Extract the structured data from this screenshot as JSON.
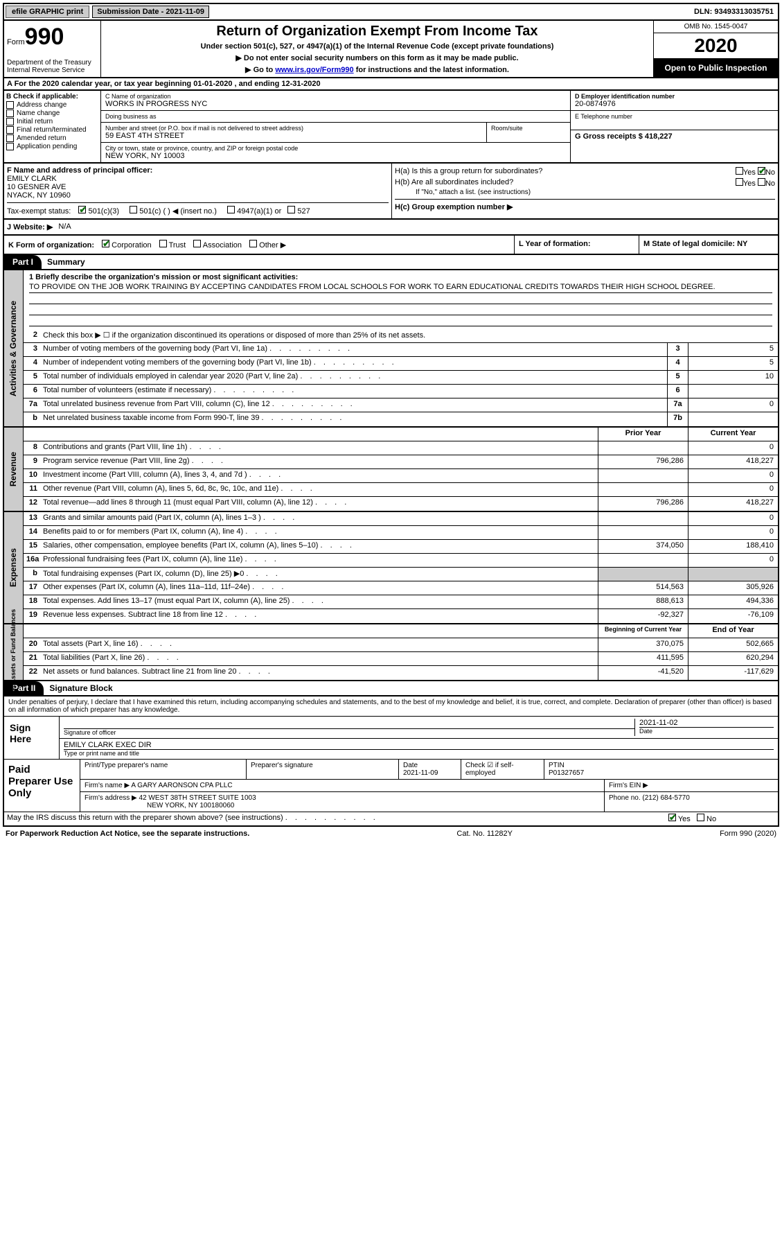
{
  "topbar": {
    "efile": "efile GRAPHIC print",
    "submission_label": "Submission Date - 2021-11-09",
    "dln": "DLN: 93493313035751"
  },
  "header": {
    "form_word": "Form",
    "form_num": "990",
    "dept": "Department of the Treasury\nInternal Revenue Service",
    "title": "Return of Organization Exempt From Income Tax",
    "subtitle": "Under section 501(c), 527, or 4947(a)(1) of the Internal Revenue Code (except private foundations)",
    "instr1": "▶ Do not enter social security numbers on this form as it may be made public.",
    "instr2_pre": "▶ Go to ",
    "instr2_link": "www.irs.gov/Form990",
    "instr2_post": " for instructions and the latest information.",
    "omb": "OMB No. 1545-0047",
    "year": "2020",
    "public": "Open to Public Inspection"
  },
  "row_a": "A For the 2020 calendar year, or tax year beginning 01-01-2020   , and ending 12-31-2020",
  "col_b": {
    "header": "B Check if applicable:",
    "items": [
      "Address change",
      "Name change",
      "Initial return",
      "Final return/terminated",
      "Amended return",
      "Application pending"
    ]
  },
  "col_c": {
    "name_label": "C Name of organization",
    "name": "WORKS IN PROGRESS NYC",
    "dba_label": "Doing business as",
    "dba": "",
    "addr_label": "Number and street (or P.O. box if mail is not delivered to street address)",
    "room_label": "Room/suite",
    "addr": "59 EAST 4TH STREET",
    "city_label": "City or town, state or province, country, and ZIP or foreign postal code",
    "city": "NEW YORK, NY  10003"
  },
  "col_d": {
    "label": "D Employer identification number",
    "val": "20-0874976"
  },
  "col_e": {
    "label": "E Telephone number",
    "val": ""
  },
  "col_g": {
    "label": "G Gross receipts $ 418,227"
  },
  "col_f": {
    "label": "F  Name and address of principal officer:",
    "name": "EMILY CLARK",
    "addr1": "10 GESNER AVE",
    "addr2": "NYACK, NY  10960"
  },
  "col_h": {
    "a_label": "H(a)  Is this a group return for subordinates?",
    "b_label": "H(b)  Are all subordinates included?",
    "b_note": "If \"No,\" attach a list. (see instructions)",
    "c_label": "H(c)  Group exemption number ▶",
    "yes": "Yes",
    "no": "No"
  },
  "row_i": {
    "label": "Tax-exempt status:",
    "opts": [
      "501(c)(3)",
      "501(c) (  ) ◀ (insert no.)",
      "4947(a)(1) or",
      "527"
    ]
  },
  "row_j": {
    "label": "J   Website: ▶",
    "val": "N/A"
  },
  "row_k": {
    "label": "K Form of organization:",
    "opts": [
      "Corporation",
      "Trust",
      "Association",
      "Other ▶"
    ]
  },
  "row_l": {
    "label": "L Year of formation:",
    "val": ""
  },
  "row_m": {
    "label": "M State of legal domicile: NY"
  },
  "part1": {
    "hdr": "Part I",
    "title": "Summary"
  },
  "summary": {
    "l1_label": "1  Briefly describe the organization's mission or most significant activities:",
    "l1_text": "TO PROVIDE ON THE JOB WORK TRAINING BY ACCEPTING CANDIDATES FROM LOCAL SCHOOLS FOR WORK TO EARN EDUCATIONAL CREDITS TOWARDS THEIR HIGH SCHOOL DEGREE.",
    "l2": "Check this box ▶ ☐ if the organization discontinued its operations or disposed of more than 25% of its net assets.",
    "lines_gov": [
      {
        "n": "3",
        "t": "Number of voting members of the governing body (Part VI, line 1a)",
        "box": "3",
        "v": "5"
      },
      {
        "n": "4",
        "t": "Number of independent voting members of the governing body (Part VI, line 1b)",
        "box": "4",
        "v": "5"
      },
      {
        "n": "5",
        "t": "Total number of individuals employed in calendar year 2020 (Part V, line 2a)",
        "box": "5",
        "v": "10"
      },
      {
        "n": "6",
        "t": "Total number of volunteers (estimate if necessary)",
        "box": "6",
        "v": ""
      },
      {
        "n": "7a",
        "t": "Total unrelated business revenue from Part VIII, column (C), line 12",
        "box": "7a",
        "v": "0"
      },
      {
        "n": "b",
        "t": "Net unrelated business taxable income from Form 990-T, line 39",
        "box": "7b",
        "v": ""
      }
    ],
    "col_prior": "Prior Year",
    "col_current": "Current Year",
    "rev": [
      {
        "n": "8",
        "t": "Contributions and grants (Part VIII, line 1h)",
        "p": "",
        "c": "0"
      },
      {
        "n": "9",
        "t": "Program service revenue (Part VIII, line 2g)",
        "p": "796,286",
        "c": "418,227"
      },
      {
        "n": "10",
        "t": "Investment income (Part VIII, column (A), lines 3, 4, and 7d )",
        "p": "",
        "c": "0"
      },
      {
        "n": "11",
        "t": "Other revenue (Part VIII, column (A), lines 5, 6d, 8c, 9c, 10c, and 11e)",
        "p": "",
        "c": "0"
      },
      {
        "n": "12",
        "t": "Total revenue—add lines 8 through 11 (must equal Part VIII, column (A), line 12)",
        "p": "796,286",
        "c": "418,227"
      }
    ],
    "exp": [
      {
        "n": "13",
        "t": "Grants and similar amounts paid (Part IX, column (A), lines 1–3 )",
        "p": "",
        "c": "0"
      },
      {
        "n": "14",
        "t": "Benefits paid to or for members (Part IX, column (A), line 4)",
        "p": "",
        "c": "0"
      },
      {
        "n": "15",
        "t": "Salaries, other compensation, employee benefits (Part IX, column (A), lines 5–10)",
        "p": "374,050",
        "c": "188,410"
      },
      {
        "n": "16a",
        "t": "Professional fundraising fees (Part IX, column (A), line 11e)",
        "p": "",
        "c": "0"
      },
      {
        "n": "b",
        "t": "Total fundraising expenses (Part IX, column (D), line 25) ▶0",
        "p": "shaded",
        "c": "shaded"
      },
      {
        "n": "17",
        "t": "Other expenses (Part IX, column (A), lines 11a–11d, 11f–24e)",
        "p": "514,563",
        "c": "305,926"
      },
      {
        "n": "18",
        "t": "Total expenses. Add lines 13–17 (must equal Part IX, column (A), line 25)",
        "p": "888,613",
        "c": "494,336"
      },
      {
        "n": "19",
        "t": "Revenue less expenses. Subtract line 18 from line 12",
        "p": "-92,327",
        "c": "-76,109"
      }
    ],
    "col_begin": "Beginning of Current Year",
    "col_end": "End of Year",
    "net": [
      {
        "n": "20",
        "t": "Total assets (Part X, line 16)",
        "p": "370,075",
        "c": "502,665"
      },
      {
        "n": "21",
        "t": "Total liabilities (Part X, line 26)",
        "p": "411,595",
        "c": "620,294"
      },
      {
        "n": "22",
        "t": "Net assets or fund balances. Subtract line 21 from line 20",
        "p": "-41,520",
        "c": "-117,629"
      }
    ]
  },
  "vtabs": {
    "gov": "Activities & Governance",
    "rev": "Revenue",
    "exp": "Expenses",
    "net": "Net Assets or Fund Balances"
  },
  "part2": {
    "hdr": "Part II",
    "title": "Signature Block"
  },
  "sig": {
    "decl": "Under penalties of perjury, I declare that I have examined this return, including accompanying schedules and statements, and to the best of my knowledge and belief, it is true, correct, and complete. Declaration of preparer (other than officer) is based on all information of which preparer has any knowledge.",
    "here": "Sign Here",
    "officer_sig_label": "Signature of officer",
    "date_label": "Date",
    "date": "2021-11-02",
    "officer_name": "EMILY CLARK  EXEC DIR",
    "officer_name_label": "Type or print name and title"
  },
  "paid": {
    "label": "Paid Preparer Use Only",
    "name_label": "Print/Type preparer's name",
    "sig_label": "Preparer's signature",
    "date_label": "Date",
    "date": "2021-11-09",
    "check_label": "Check ☑ if self-employed",
    "ptin_label": "PTIN",
    "ptin": "P01327657",
    "firm_label": "Firm's name   ▶",
    "firm": "A GARY AARONSON CPA PLLC",
    "ein_label": "Firm's EIN ▶",
    "addr_label": "Firm's address ▶",
    "addr1": "42 WEST 38TH STREET SUITE 1003",
    "addr2": "NEW YORK, NY  100180060",
    "phone_label": "Phone no. (212) 684-5770"
  },
  "discuss": {
    "text": "May the IRS discuss this return with the preparer shown above? (see instructions)",
    "yes": "Yes",
    "no": "No"
  },
  "footer": {
    "left": "For Paperwork Reduction Act Notice, see the separate instructions.",
    "mid": "Cat. No. 11282Y",
    "right": "Form 990 (2020)"
  }
}
